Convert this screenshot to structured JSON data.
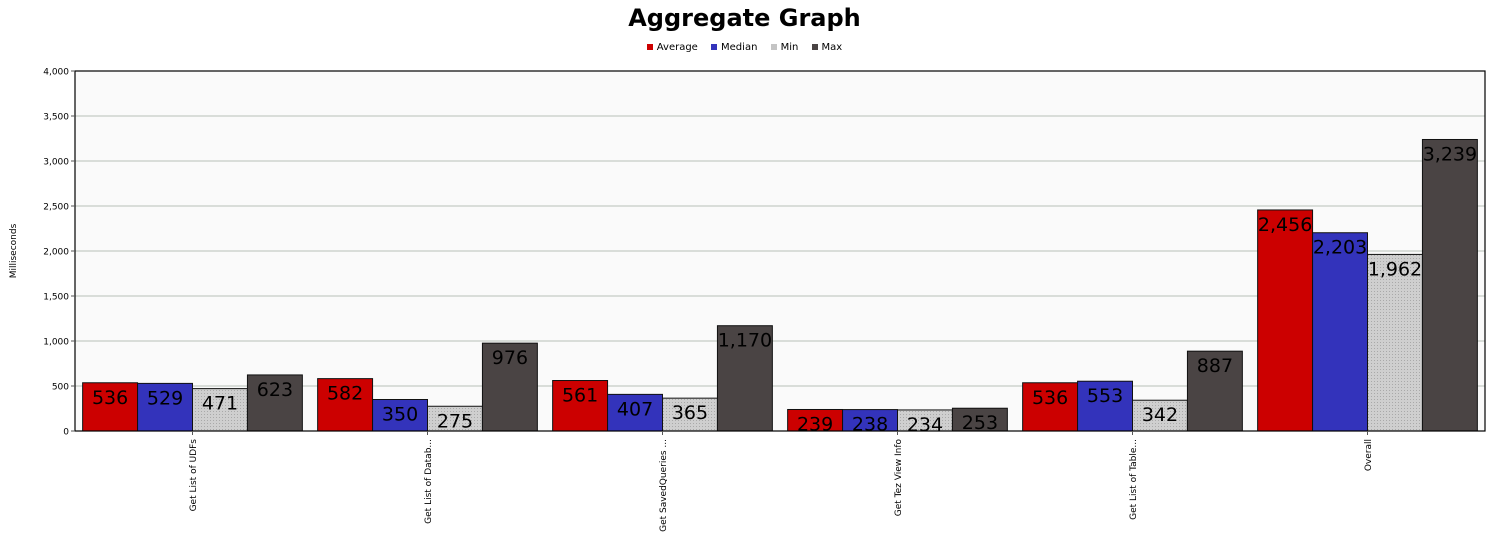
{
  "chart_data": {
    "type": "bar",
    "title": "Aggregate Graph",
    "xlabel": "",
    "ylabel": "Milliseconds",
    "ylim": [
      0,
      4000
    ],
    "yticks": [
      "0",
      "500",
      "1,000",
      "1,500",
      "2,000",
      "2,500",
      "3,000",
      "3,500",
      "4,000"
    ],
    "grid": true,
    "legend_position": "top-center",
    "categories": [
      "Get List of UDFs",
      "Get List of Datab...",
      "Get SavedQueries ...",
      "Get Tez View Info",
      "Get List of Table...",
      "Overall"
    ],
    "series": [
      {
        "name": "Average",
        "color": "#cc0000",
        "values": [
          536,
          582,
          561,
          239,
          536,
          2456
        ],
        "labels": [
          "536",
          "582",
          "561",
          "239",
          "536",
          "2,456"
        ]
      },
      {
        "name": "Median",
        "color": "#3333bb",
        "values": [
          529,
          350,
          407,
          238,
          553,
          2203
        ],
        "labels": [
          "529",
          "350",
          "407",
          "238",
          "553",
          "2,203"
        ]
      },
      {
        "name": "Min",
        "color": "#c4c4c4",
        "values": [
          471,
          275,
          365,
          234,
          342,
          1962
        ],
        "labels": [
          "471",
          "275",
          "365",
          "234",
          "342",
          "1,962"
        ]
      },
      {
        "name": "Max",
        "color": "#4a4444",
        "values": [
          623,
          976,
          1170,
          253,
          887,
          3239
        ],
        "labels": [
          "623",
          "976",
          "1,170",
          "253",
          "887",
          "3,239"
        ]
      }
    ]
  }
}
